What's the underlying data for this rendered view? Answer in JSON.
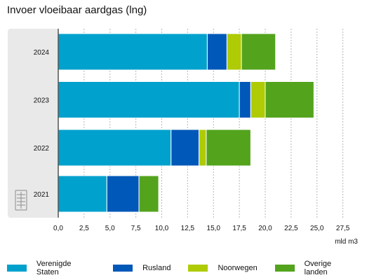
{
  "chart_data": {
    "type": "bar",
    "orientation": "horizontal",
    "stacked": true,
    "title": "Invoer vloeibaar aardgas (lng)",
    "xlabel": "mld m3",
    "ylabel": "",
    "xlim": [
      0,
      27.5
    ],
    "x_ticks": [
      "0,0",
      "2,5",
      "5,0",
      "7,5",
      "10,0",
      "12,5",
      "15,0",
      "17,5",
      "20,0",
      "22,5",
      "25,0",
      "27,5"
    ],
    "categories": [
      "2024",
      "2023",
      "2022",
      "2021"
    ],
    "series": [
      {
        "name": "Verenigde Staten",
        "color": "#00a1cd",
        "values": [
          14.4,
          17.5,
          10.9,
          4.7
        ]
      },
      {
        "name": "Rusland",
        "color": "#0058b8",
        "values": [
          1.9,
          1.1,
          2.7,
          3.1
        ]
      },
      {
        "name": "Noorwegen",
        "color": "#afcb05",
        "values": [
          1.4,
          1.4,
          0.7,
          0.0
        ]
      },
      {
        "name": "Overige landen",
        "color": "#53a31d",
        "values": [
          3.3,
          4.7,
          4.3,
          1.9
        ]
      }
    ],
    "grid": "vertical dashed",
    "legend_position": "bottom"
  }
}
